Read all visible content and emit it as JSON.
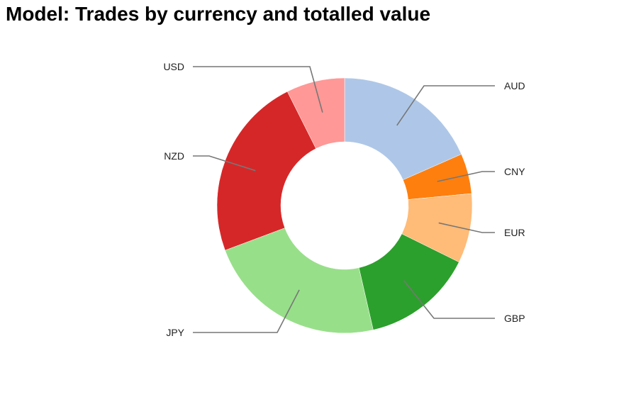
{
  "title": "Model: Trades by currency and totalled value",
  "chart_data": {
    "type": "pie",
    "title": "Model: Trades by currency and totalled value",
    "donut": true,
    "legend": "none",
    "labels": [
      "AUD",
      "CNY",
      "EUR",
      "GBP",
      "JPY",
      "NZD",
      "USD"
    ],
    "values": [
      18.4,
      5.1,
      8.8,
      14.1,
      22.9,
      23.3,
      7.4
    ],
    "colors": [
      "#aec7e8",
      "#ff7f0e",
      "#ffbb78",
      "#2ca02c",
      "#98df8a",
      "#d62728",
      "#ff9896"
    ]
  }
}
